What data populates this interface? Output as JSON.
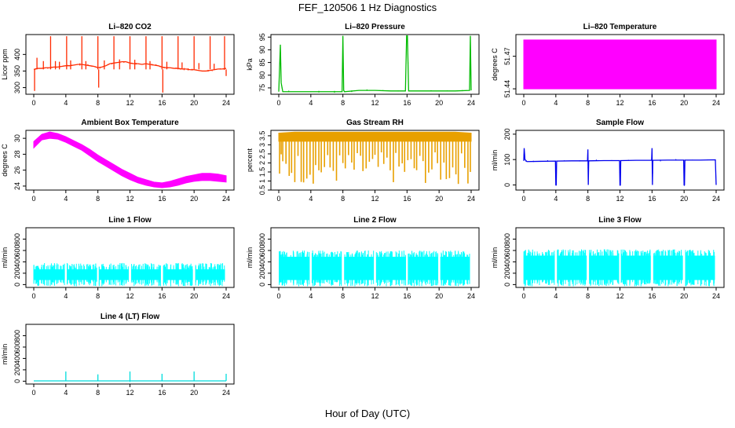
{
  "figure": {
    "title": "FEF_120506  1 Hz Diagnostics",
    "xlabel": "Hour of Day (UTC)"
  },
  "chart_data": [
    {
      "type": "line",
      "title": "Li–820 CO2",
      "ylabel": "Licor ppm",
      "color": "#ff2a00",
      "x_ticks": [
        0,
        4,
        8,
        12,
        16,
        20,
        24
      ],
      "xlim": [
        0,
        24
      ],
      "y_ticks": [
        300,
        350,
        400
      ],
      "ylim": [
        280,
        460
      ],
      "series": [
        {
          "x": [
            0,
            0.5,
            1,
            1.5,
            2,
            2.5,
            3,
            3.5,
            4,
            4.5,
            5,
            5.5,
            6,
            6.5,
            7,
            7.5,
            8,
            8.5,
            9,
            9.5,
            10,
            10.5,
            11,
            11.5,
            12,
            12.5,
            13,
            13.5,
            14,
            14.5,
            15,
            15.5,
            16,
            16.5,
            17,
            17.5,
            18,
            18.5,
            19,
            19.5,
            20,
            20.5,
            21,
            21.5,
            22,
            22.5,
            23,
            23.5,
            24
          ],
          "y": [
            355,
            358,
            358,
            360,
            360,
            362,
            362,
            364,
            366,
            366,
            368,
            370,
            370,
            368,
            366,
            364,
            360,
            362,
            366,
            372,
            374,
            376,
            378,
            378,
            374,
            372,
            372,
            370,
            372,
            370,
            368,
            366,
            362,
            360,
            360,
            358,
            358,
            356,
            356,
            354,
            354,
            352,
            350,
            350,
            352,
            354,
            356,
            356,
            358
          ]
        }
      ],
      "spikes": [
        {
          "x": 0.1,
          "y": 290
        },
        {
          "x": 0.4,
          "y": 390
        },
        {
          "x": 1.2,
          "y": 380
        },
        {
          "x": 2.1,
          "y": 455
        },
        {
          "x": 2.7,
          "y": 380
        },
        {
          "x": 3.2,
          "y": 378
        },
        {
          "x": 4.1,
          "y": 455
        },
        {
          "x": 4.6,
          "y": 382
        },
        {
          "x": 6.0,
          "y": 455
        },
        {
          "x": 6.5,
          "y": 380
        },
        {
          "x": 8.0,
          "y": 455
        },
        {
          "x": 8.1,
          "y": 300
        },
        {
          "x": 8.8,
          "y": 382
        },
        {
          "x": 10.0,
          "y": 455
        },
        {
          "x": 10.7,
          "y": 385
        },
        {
          "x": 12.0,
          "y": 455
        },
        {
          "x": 12.6,
          "y": 384
        },
        {
          "x": 14.0,
          "y": 455
        },
        {
          "x": 14.5,
          "y": 380
        },
        {
          "x": 16.0,
          "y": 455
        },
        {
          "x": 16.1,
          "y": 285
        },
        {
          "x": 16.6,
          "y": 378
        },
        {
          "x": 18.0,
          "y": 455
        },
        {
          "x": 18.5,
          "y": 376
        },
        {
          "x": 20.0,
          "y": 455
        },
        {
          "x": 20.6,
          "y": 374
        },
        {
          "x": 22.0,
          "y": 455
        },
        {
          "x": 22.5,
          "y": 372
        },
        {
          "x": 23.8,
          "y": 455
        },
        {
          "x": 24.0,
          "y": 335
        }
      ]
    },
    {
      "type": "line",
      "title": "Li–820 Pressure",
      "ylabel": "kPa",
      "color": "#00bb00",
      "x_ticks": [
        0,
        4,
        8,
        12,
        16,
        20,
        24
      ],
      "xlim": [
        0,
        24
      ],
      "y_ticks": [
        75,
        80,
        85,
        90,
        95
      ],
      "ylim": [
        72.5,
        96
      ],
      "series": [
        {
          "x": [
            0,
            0.2,
            0.3,
            0.5,
            2,
            4,
            6,
            7.9,
            8.0,
            8.1,
            8.2,
            10,
            12,
            14,
            15.8,
            15.95,
            16.05,
            16.2,
            18,
            20,
            22,
            23.8,
            23.9,
            24.0
          ],
          "y": [
            73.5,
            92,
            77,
            73.5,
            73.5,
            73.5,
            73.5,
            73.5,
            95.5,
            74,
            73.5,
            74,
            74,
            73.8,
            73.8,
            95.5,
            95.5,
            73.8,
            73.8,
            73.8,
            73.8,
            74,
            95.5,
            74
          ]
        }
      ]
    },
    {
      "type": "area",
      "title": "Li–820 Temperature",
      "ylabel": "degrees C",
      "color": "#ff00ff",
      "x_ticks": [
        0,
        4,
        8,
        12,
        16,
        20,
        24
      ],
      "xlim": [
        0,
        24
      ],
      "y_ticks": [
        51.44,
        51.47
      ],
      "ylim": [
        51.435,
        51.49
      ],
      "series": [
        {
          "x": [
            0,
            24
          ],
          "low": [
            51.44,
            51.44
          ],
          "high": [
            51.485,
            51.485
          ]
        }
      ]
    },
    {
      "type": "area",
      "title": "Ambient Box Temperature",
      "ylabel": "degrees C",
      "color": "#ff00ff",
      "x_ticks": [
        0,
        4,
        8,
        12,
        16,
        20,
        24
      ],
      "xlim": [
        0,
        24
      ],
      "y_ticks": [
        24,
        26,
        28,
        30
      ],
      "ylim": [
        23.5,
        31
      ],
      "series": [
        {
          "x": [
            0,
            1,
            2,
            3,
            4,
            5,
            6,
            7,
            8,
            9,
            10,
            11,
            12,
            13,
            14,
            15,
            16,
            17,
            18,
            19,
            20,
            21,
            22,
            23,
            24
          ],
          "low": [
            28.8,
            29.8,
            30.0,
            29.9,
            29.5,
            29.0,
            28.5,
            27.8,
            27.1,
            26.5,
            25.9,
            25.3,
            24.8,
            24.4,
            24.1,
            23.9,
            23.8,
            23.9,
            24.1,
            24.4,
            24.6,
            24.7,
            24.7,
            24.6,
            24.5
          ],
          "high": [
            29.6,
            30.5,
            30.8,
            30.6,
            30.2,
            29.7,
            29.2,
            28.6,
            27.9,
            27.3,
            26.7,
            26.1,
            25.6,
            25.1,
            24.8,
            24.5,
            24.4,
            24.6,
            24.9,
            25.2,
            25.4,
            25.6,
            25.6,
            25.5,
            25.3
          ]
        }
      ]
    },
    {
      "type": "area",
      "title": "Gas Stream RH",
      "ylabel": "percent",
      "color": "#e8a000",
      "x_ticks": [
        0,
        4,
        8,
        12,
        16,
        20,
        24
      ],
      "xlim": [
        0,
        24
      ],
      "y_ticks": [
        0.5,
        1.0,
        1.5,
        2.0,
        2.5,
        3.0,
        3.5
      ],
      "ylim": [
        0.5,
        3.8
      ],
      "series": [
        {
          "x": [
            0,
            2,
            4,
            6,
            8,
            10,
            12,
            14,
            16,
            18,
            20,
            22,
            24
          ],
          "low": [
            3.2,
            3.2,
            3.2,
            3.2,
            3.2,
            3.2,
            3.2,
            3.2,
            3.2,
            3.2,
            3.2,
            3.2,
            3.2
          ],
          "high": [
            3.65,
            3.7,
            3.7,
            3.7,
            3.7,
            3.7,
            3.7,
            3.7,
            3.7,
            3.7,
            3.7,
            3.7,
            3.65
          ]
        }
      ],
      "dips": [
        0.1,
        0.3,
        0.5,
        0.9,
        1.3,
        1.6,
        2.0,
        2.4,
        2.8,
        3.1,
        3.5,
        3.9,
        4.3,
        4.6,
        5.0,
        5.3,
        5.7,
        6.1,
        6.4,
        6.8,
        7.2,
        7.6,
        8.0,
        8.3,
        8.7,
        9.1,
        9.4,
        9.8,
        10.2,
        10.5,
        10.9,
        11.3,
        11.7,
        12.0,
        12.4,
        12.8,
        13.1,
        13.5,
        13.9,
        14.3,
        14.6,
        15.0,
        15.4,
        15.7,
        16.1,
        16.5,
        16.9,
        17.2,
        17.6,
        18.0,
        18.3,
        18.7,
        19.1,
        19.5,
        19.8,
        20.2,
        20.6,
        20.9,
        21.3,
        21.7,
        22.1,
        22.4,
        22.8,
        23.2,
        23.6,
        23.9
      ]
    },
    {
      "type": "line",
      "title": "Sample Flow",
      "ylabel": "ml/min",
      "color": "#0000ee",
      "x_ticks": [
        0,
        4,
        8,
        12,
        16,
        20,
        24
      ],
      "xlim": [
        0,
        24
      ],
      "y_ticks": [
        0,
        100,
        200
      ],
      "ylim": [
        -20,
        215
      ],
      "series": [
        {
          "x": [
            0,
            0.05,
            0.15,
            0.4,
            2,
            3.95,
            4.0,
            4.05,
            4.1,
            6,
            7.95,
            8.0,
            8.05,
            8.1,
            10,
            11.95,
            12.0,
            12.05,
            12.1,
            14,
            15.95,
            16.0,
            16.05,
            16.1,
            18,
            19.95,
            20.0,
            20.05,
            20.1,
            22,
            23.9,
            24.0
          ],
          "y": [
            95,
            145,
            100,
            92,
            93,
            94,
            0,
            0,
            94,
            95,
            95,
            140,
            0,
            95,
            96,
            96,
            0,
            0,
            96,
            97,
            97,
            145,
            0,
            97,
            98,
            98,
            0,
            0,
            98,
            98,
            99,
            0
          ]
        }
      ]
    },
    {
      "type": "area",
      "title": "Line 1 Flow",
      "ylabel": "ml/min",
      "color": "#00ffff",
      "x_ticks": [
        0,
        4,
        8,
        12,
        16,
        20,
        24
      ],
      "xlim": [
        0,
        24
      ],
      "y_ticks": [
        0,
        200,
        400,
        600,
        800
      ],
      "ylim": [
        -50,
        1000
      ],
      "series": [
        {
          "x": [
            0,
            24
          ],
          "low": [
            80,
            80
          ],
          "high": [
            270,
            270
          ]
        }
      ],
      "gaps": [
        4,
        8,
        12,
        16,
        20
      ]
    },
    {
      "type": "area",
      "title": "Line 2 Flow",
      "ylabel": "ml/min",
      "color": "#00ffff",
      "x_ticks": [
        0,
        4,
        8,
        12,
        16,
        20,
        24
      ],
      "xlim": [
        0,
        24
      ],
      "y_ticks": [
        0,
        200,
        400,
        600,
        800
      ],
      "ylim": [
        -50,
        1000
      ],
      "series": [
        {
          "x": [
            0,
            24
          ],
          "low": [
            80,
            80
          ],
          "high": [
            490,
            490
          ]
        }
      ],
      "gaps": [
        4,
        8,
        12,
        16,
        20
      ]
    },
    {
      "type": "area",
      "title": "Line 3 Flow",
      "ylabel": "ml/min",
      "color": "#00ffff",
      "x_ticks": [
        0,
        4,
        8,
        12,
        16,
        20,
        24
      ],
      "xlim": [
        0,
        24
      ],
      "y_ticks": [
        0,
        200,
        400,
        600,
        800
      ],
      "ylim": [
        -50,
        1000
      ],
      "series": [
        {
          "x": [
            0,
            24
          ],
          "low": [
            80,
            80
          ],
          "high": [
            510,
            510
          ]
        }
      ],
      "gaps": [
        4,
        8,
        12,
        16,
        20
      ]
    },
    {
      "type": "line",
      "title": "Line 4 (LT) Flow",
      "ylabel": "ml/min",
      "color": "#00dddd",
      "x_ticks": [
        0,
        4,
        8,
        12,
        16,
        20,
        24
      ],
      "xlim": [
        0,
        24
      ],
      "y_ticks": [
        0,
        200,
        400,
        600,
        800
      ],
      "ylim": [
        -50,
        1000
      ],
      "series": [
        {
          "x": [
            0,
            24
          ],
          "y": [
            5,
            5
          ]
        }
      ],
      "spikes": [
        {
          "x": 4,
          "y": 170
        },
        {
          "x": 8,
          "y": 120
        },
        {
          "x": 12,
          "y": 170
        },
        {
          "x": 16,
          "y": 130
        },
        {
          "x": 20,
          "y": 170
        },
        {
          "x": 24,
          "y": 130
        }
      ]
    }
  ]
}
